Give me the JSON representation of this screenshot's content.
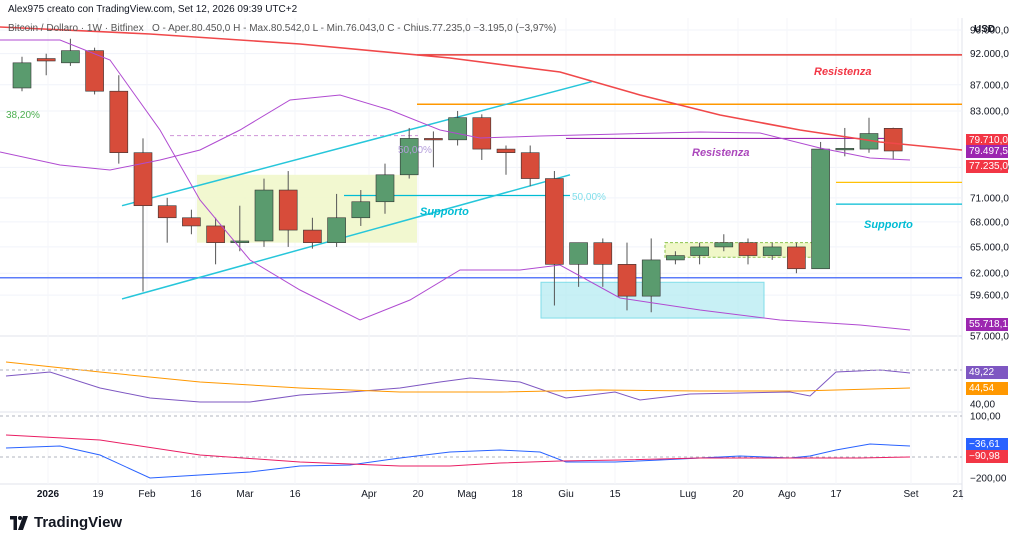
{
  "header": {
    "author_line": "Alex975 creato con TradingView.com, Set 12, 2026 09:39 UTC+2",
    "symbol_line": "Bitcoin / Dollaro · 1W · Bitfinex",
    "ohlc": "O - Aper.80.450,0  H - Max.80.542,0  L - Min.76.043,0  C - Chius.77.235,0  −3.195,0 (−3,97%)"
  },
  "currency": "USD",
  "annotations": {
    "resistenza_top": "Resistenza",
    "resistenza_mid": "Resistenza",
    "supporto_left": "Supporto",
    "supporto_right": "Supporto",
    "fib_382": "38,20%",
    "fib_50a": "50,00%",
    "fib_50b": "50,00%"
  },
  "price_tags": [
    {
      "text": "79.710,0",
      "color": "#f23645"
    },
    {
      "text": "79.497,5",
      "color": "#9c27b0"
    },
    {
      "text": "77.235,0",
      "color": "#f23645"
    },
    {
      "text": "55.718,1",
      "color": "#9c27b0"
    },
    {
      "text": "49,22",
      "color": "#7e57c2"
    },
    {
      "text": "44,54",
      "color": "#ff9800"
    },
    {
      "text": "−36,61",
      "color": "#2962ff"
    },
    {
      "text": "−90,98",
      "color": "#f23645"
    }
  ],
  "brand": "TradingView",
  "chart_data": {
    "type": "candlestick",
    "title": "Bitcoin / Dollaro · 1W · Bitfinex",
    "y_ticks": [
      "96.000,0",
      "92.000,0",
      "87.000,0",
      "83.000,0",
      "75.000,0",
      "71.000,0",
      "68.000,0",
      "65.000,0",
      "62.000,0",
      "59.600,0",
      "57.000,0",
      "60,00",
      "40,00",
      "100,00",
      "−200,00"
    ],
    "x_ticks": [
      "2026",
      "19",
      "Feb",
      "16",
      "Mar",
      "16",
      "Apr",
      "20",
      "Mag",
      "18",
      "Giu",
      "15",
      "Lug",
      "20",
      "Ago",
      "17",
      "Set",
      "21"
    ],
    "candles": [
      {
        "o": 86500,
        "c": 90500,
        "h": 91500,
        "l": 86000
      },
      {
        "o": 91200,
        "c": 90800,
        "h": 92000,
        "l": 88500
      },
      {
        "o": 90500,
        "c": 92500,
        "h": 94500,
        "l": 90000
      },
      {
        "o": 92500,
        "c": 86000,
        "h": 93000,
        "l": 85500
      },
      {
        "o": 86000,
        "c": 77000,
        "h": 88500,
        "l": 75500
      },
      {
        "o": 77000,
        "c": 70000,
        "h": 79000,
        "l": 60000
      },
      {
        "o": 70000,
        "c": 68500,
        "h": 71000,
        "l": 65500
      },
      {
        "o": 68500,
        "c": 67500,
        "h": 69500,
        "l": 66500
      },
      {
        "o": 67500,
        "c": 65500,
        "h": 68500,
        "l": 63000
      },
      {
        "o": 65500,
        "c": 65700,
        "h": 70000,
        "l": 64500
      },
      {
        "o": 65700,
        "c": 72000,
        "h": 73500,
        "l": 65000
      },
      {
        "o": 72000,
        "c": 67000,
        "h": 74500,
        "l": 65000
      },
      {
        "o": 67000,
        "c": 65500,
        "h": 68500,
        "l": 64800
      },
      {
        "o": 65500,
        "c": 68500,
        "h": 71500,
        "l": 65000
      },
      {
        "o": 68500,
        "c": 70500,
        "h": 72000,
        "l": 67500
      },
      {
        "o": 70500,
        "c": 74000,
        "h": 75500,
        "l": 69000
      },
      {
        "o": 74000,
        "c": 79000,
        "h": 80500,
        "l": 73500
      },
      {
        "o": 79000,
        "c": 78800,
        "h": 80000,
        "l": 75000
      },
      {
        "o": 78800,
        "c": 82000,
        "h": 83000,
        "l": 78000
      },
      {
        "o": 82000,
        "c": 77500,
        "h": 82500,
        "l": 76000
      },
      {
        "o": 77500,
        "c": 77000,
        "h": 78000,
        "l": 74000
      },
      {
        "o": 77000,
        "c": 73500,
        "h": 78000,
        "l": 72500
      },
      {
        "o": 73500,
        "c": 63000,
        "h": 74500,
        "l": 58500
      },
      {
        "o": 63000,
        "c": 65500,
        "h": 65500,
        "l": 60500
      },
      {
        "o": 65500,
        "c": 63000,
        "h": 66000,
        "l": 60500
      },
      {
        "o": 63000,
        "c": 59500,
        "h": 65500,
        "l": 58000
      },
      {
        "o": 59500,
        "c": 63500,
        "h": 66000,
        "l": 57800
      },
      {
        "o": 63500,
        "c": 64000,
        "h": 64500,
        "l": 63000
      },
      {
        "o": 64000,
        "c": 65000,
        "h": 65500,
        "l": 63000
      },
      {
        "o": 65000,
        "c": 65500,
        "h": 66500,
        "l": 64500
      },
      {
        "o": 65500,
        "c": 64000,
        "h": 66000,
        "l": 63000
      },
      {
        "o": 64000,
        "c": 65000,
        "h": 65500,
        "l": 63500
      },
      {
        "o": 65000,
        "c": 62500,
        "h": 65500,
        "l": 62000
      },
      {
        "o": 62500,
        "c": 77500,
        "h": 78500,
        "l": 62500
      },
      {
        "o": 77500,
        "c": 77600,
        "h": 80500,
        "l": 76500
      },
      {
        "o": 77500,
        "c": 79700,
        "h": 82000,
        "l": 77000
      },
      {
        "o": 80450,
        "c": 77235,
        "h": 80542,
        "l": 76043
      }
    ],
    "colors": {
      "up": "#5a9b6e",
      "down": "#d74c3a",
      "ma": "#f0484a",
      "bb": "#b04bd1",
      "channel": "#00bcd4"
    },
    "ylim": [
      56000,
      99000
    ]
  }
}
